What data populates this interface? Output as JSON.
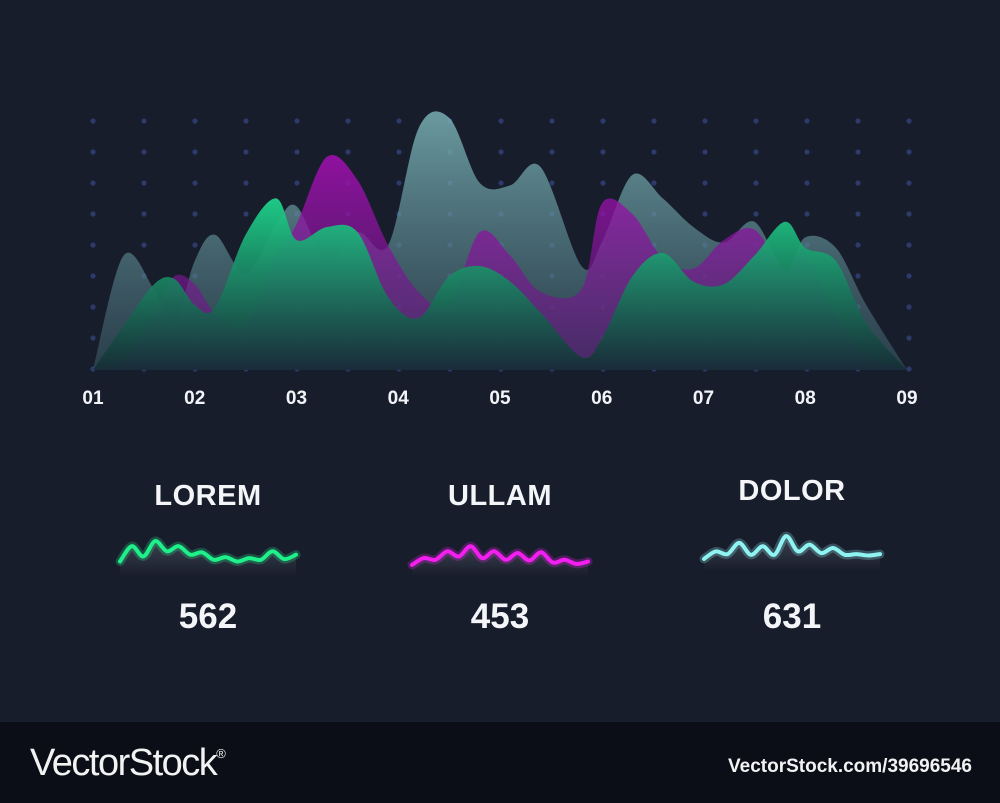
{
  "chart_data": {
    "type": "area",
    "title": "",
    "xlabel": "",
    "ylabel": "",
    "grid": "dots",
    "categories": [
      "01",
      "02",
      "03",
      "04",
      "05",
      "06",
      "07",
      "08",
      "09"
    ],
    "x": [
      1.0,
      1.3,
      1.6,
      1.8,
      2.0,
      2.2,
      2.5,
      2.8,
      3.0,
      3.3,
      3.6,
      3.9,
      4.2,
      4.5,
      4.8,
      5.1,
      5.4,
      5.8,
      6.0,
      6.3,
      6.6,
      6.9,
      7.2,
      7.5,
      7.8,
      8.0,
      8.3,
      8.6,
      9.0
    ],
    "ylim": [
      0,
      100
    ],
    "series": [
      {
        "color": "#8fc7c9",
        "y": [
          0,
          44,
          31,
          18,
          42,
          52,
          37,
          56,
          63,
          42,
          53,
          48,
          93,
          97,
          72,
          71,
          78,
          40,
          49,
          75,
          66,
          55,
          49,
          57,
          38,
          51,
          47,
          25,
          0
        ]
      },
      {
        "color": "#b11fbf",
        "y": [
          0,
          4,
          22,
          36,
          33,
          22,
          17,
          44,
          56,
          82,
          73,
          48,
          30,
          25,
          53,
          44,
          30,
          31,
          64,
          60,
          43,
          39,
          50,
          54,
          38,
          45,
          21,
          6,
          0
        ]
      },
      {
        "color": "#1fc981",
        "y": [
          0,
          17,
          33,
          35,
          25,
          24,
          52,
          66,
          50,
          55,
          53,
          28,
          20,
          36,
          40,
          34,
          22,
          5,
          12,
          36,
          45,
          34,
          33,
          44,
          57,
          47,
          42,
          18,
          0
        ]
      }
    ]
  },
  "stats": [
    {
      "label": "LOREM",
      "value": "562",
      "color": "#1ef08a",
      "sparkline": [
        25,
        70,
        40,
        85,
        55,
        70,
        45,
        52,
        30,
        38,
        25,
        35,
        30,
        55,
        32,
        45
      ]
    },
    {
      "label": "ULLAM",
      "value": "453",
      "color": "#f21ff0",
      "sparkline": [
        15,
        35,
        30,
        55,
        40,
        70,
        35,
        55,
        30,
        50,
        28,
        52,
        22,
        30,
        18,
        25
      ]
    },
    {
      "label": "DOLOR",
      "value": "631",
      "color": "#8ff3f2",
      "sparkline": [
        18,
        40,
        32,
        65,
        30,
        55,
        30,
        85,
        40,
        60,
        35,
        50,
        30,
        32,
        28,
        32
      ]
    }
  ],
  "watermark": {
    "brand": "VectorStock",
    "registered": "®",
    "image_id": "VectorStock.com/39696546"
  }
}
